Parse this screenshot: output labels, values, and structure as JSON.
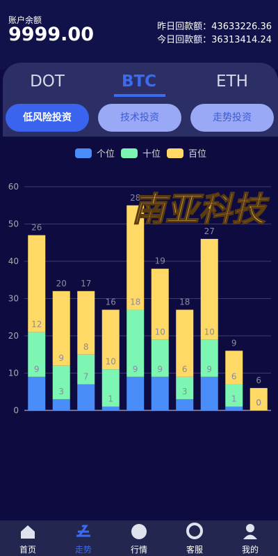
{
  "header": {
    "balance_label": "账户余额",
    "balance": "9999.00",
    "yesterday": "昨日回款额：43633226.36",
    "today": "今日回款额：36313414.24"
  },
  "tabs": [
    "DOT",
    "BTC",
    "ETH"
  ],
  "buttons": [
    "低风险投资",
    "技术投资",
    "走势投资"
  ],
  "logo": "南亚科技",
  "chart_data": {
    "type": "bar",
    "stacked": true,
    "legend": "top",
    "grid": true,
    "categories": [
      null,
      null,
      null,
      null,
      null,
      null,
      null,
      null,
      null,
      null
    ],
    "series": [
      {
        "name": "个位",
        "color": "#4b8df8",
        "values": [
          9,
          3,
          7,
          1,
          9,
          9,
          3,
          9,
          1,
          0
        ]
      },
      {
        "name": "十位",
        "color": "#7cf6b2",
        "values": [
          12,
          9,
          8,
          10,
          18,
          10,
          6,
          10,
          6,
          0
        ]
      },
      {
        "name": "百位",
        "color": "#ffd966",
        "values": [
          26,
          20,
          17,
          16,
          28,
          19,
          18,
          27,
          9,
          6
        ]
      }
    ],
    "ylim": [
      0,
      60
    ],
    "yticks": [
      0,
      10,
      20,
      30,
      40,
      50,
      60
    ]
  },
  "nav": [
    "首页",
    "走势",
    "行情",
    "客服",
    "我的"
  ]
}
